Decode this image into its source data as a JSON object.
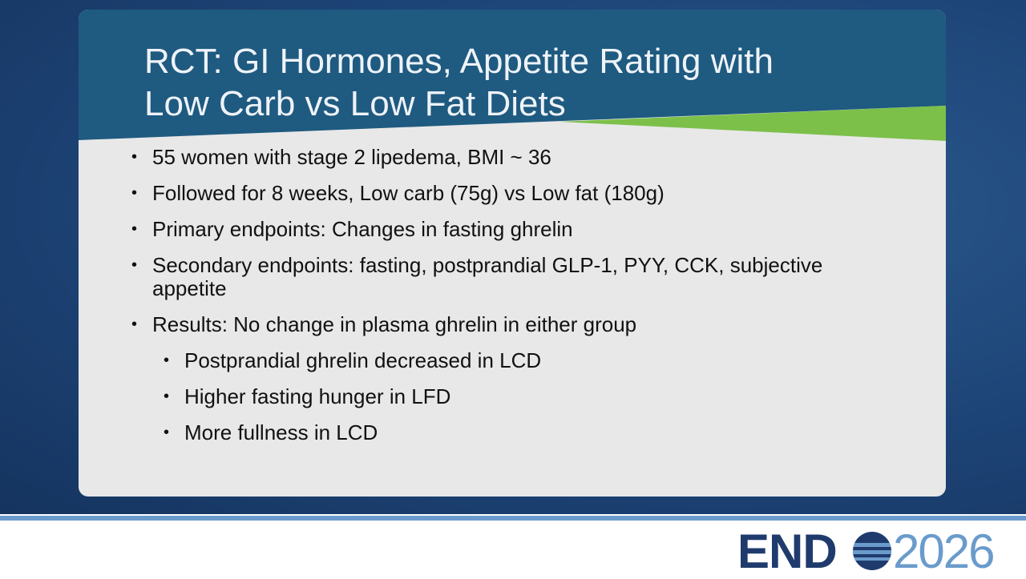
{
  "slide": {
    "title_lines": [
      "RCT: GI Hormones, Appetite Rating with",
      "Low Carb vs Low Fat Diets"
    ],
    "bullets": [
      {
        "text": "55 women with stage 2 lipedema, BMI ~ 36",
        "level": 1
      },
      {
        "text": "Followed for 8 weeks, Low carb (75g) vs Low fat (180g)",
        "level": 1
      },
      {
        "text": "Primary endpoints: Changes in fasting ghrelin",
        "level": 1
      },
      {
        "text": "Secondary endpoints: fasting, postprandial GLP-1, PYY, CCK, subjective appetite",
        "level": 1
      },
      {
        "text": "Results: No change in plasma ghrelin in either group",
        "level": 1
      },
      {
        "text": "Postprandial ghrelin decreased in LCD",
        "level": 2
      },
      {
        "text": "Higher fasting hunger in LFD",
        "level": 2
      },
      {
        "text": "More fullness in LCD",
        "level": 2
      }
    ],
    "logo": {
      "left": "END",
      "right": "2026"
    }
  }
}
